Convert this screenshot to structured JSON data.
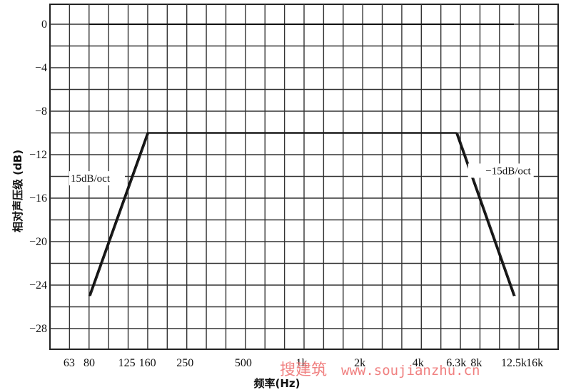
{
  "chart_data": {
    "type": "line",
    "title": "",
    "xlabel": "频率(Hz)",
    "ylabel": "相对声压级 (dB)",
    "x_scale": "log",
    "x_tick_labels": [
      "63",
      "80",
      "125",
      "160",
      "250",
      "500",
      "1k",
      "2k",
      "4k",
      "6.3k",
      "8k",
      "12.5k",
      "16k"
    ],
    "x_tick_values": [
      63,
      80,
      125,
      160,
      250,
      500,
      1000,
      2000,
      4000,
      6300,
      8000,
      12500,
      16000
    ],
    "y_tick_labels": [
      "0",
      "-4",
      "-8",
      "-12",
      "-16",
      "-20",
      "-24",
      "-28"
    ],
    "y_tick_values": [
      0,
      -4,
      -8,
      -12,
      -16,
      -20,
      -24,
      -28
    ],
    "ylim": [
      -30,
      1.5
    ],
    "grid": true,
    "series": [
      {
        "points": [
          [
            80,
            0
          ],
          [
            12500,
            0
          ]
        ]
      },
      {
        "points": [
          [
            80,
            -25
          ],
          [
            160,
            -10
          ],
          [
            6300,
            -10
          ],
          [
            12500,
            -25
          ]
        ]
      }
    ],
    "annotations": [
      {
        "text": "15dB/oct",
        "x": 80,
        "y": -14.5
      },
      {
        "text": "-15dB/oct",
        "x": 10000,
        "y": -13.8
      }
    ]
  },
  "watermark": {
    "cn": "搜建筑",
    "url": "www.soujianzhu.cn"
  }
}
